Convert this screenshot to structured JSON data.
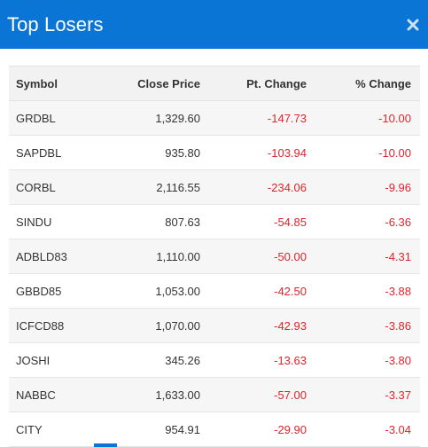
{
  "modal": {
    "title": "Top Losers",
    "close_icon": "close-x-icon"
  },
  "table": {
    "headers": {
      "symbol": "Symbol",
      "close_price": "Close Price",
      "pt_change": "Pt. Change",
      "pct_change": "% Change"
    },
    "rows": [
      {
        "symbol": "GRDBL",
        "close_price": "1,329.60",
        "pt_change": "-147.73",
        "pct_change": "-10.00"
      },
      {
        "symbol": "SAPDBL",
        "close_price": "935.80",
        "pt_change": "-103.94",
        "pct_change": "-10.00"
      },
      {
        "symbol": "CORBL",
        "close_price": "2,116.55",
        "pt_change": "-234.06",
        "pct_change": "-9.96"
      },
      {
        "symbol": "SINDU",
        "close_price": "807.63",
        "pt_change": "-54.85",
        "pct_change": "-6.36"
      },
      {
        "symbol": "ADBLD83",
        "close_price": "1,110.00",
        "pt_change": "-50.00",
        "pct_change": "-4.31"
      },
      {
        "symbol": "GBBD85",
        "close_price": "1,053.00",
        "pt_change": "-42.50",
        "pct_change": "-3.88"
      },
      {
        "symbol": "ICFCD88",
        "close_price": "1,070.00",
        "pt_change": "-42.93",
        "pct_change": "-3.86"
      },
      {
        "symbol": "JOSHI",
        "close_price": "345.26",
        "pt_change": "-13.63",
        "pct_change": "-3.80"
      },
      {
        "symbol": "NABBC",
        "close_price": "1,633.00",
        "pt_change": "-57.00",
        "pct_change": "-3.37"
      },
      {
        "symbol": "CITY",
        "close_price": "954.91",
        "pt_change": "-29.90",
        "pct_change": "-3.04"
      }
    ]
  },
  "colors": {
    "header_bg": "#0b75d6",
    "negative": "#e0242b"
  }
}
